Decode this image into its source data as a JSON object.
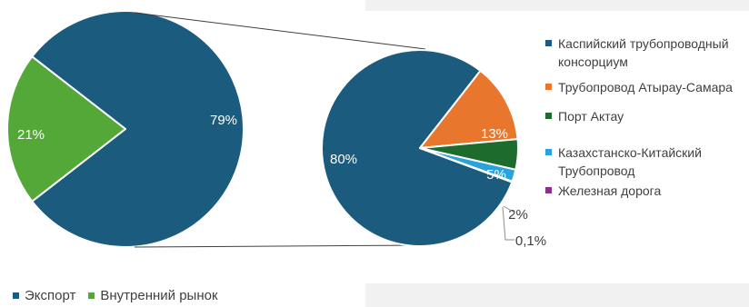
{
  "colors": {
    "export": "#1a5b7e",
    "domestic": "#54a838",
    "cpc": "#1a5b7e",
    "atyrau": "#e8762d",
    "aktau": "#1e6b2e",
    "kz_china": "#29a3dd",
    "rail": "#8b2f8f",
    "connector": "#404040"
  },
  "chart_data": [
    {
      "type": "pie",
      "categories": [
        "Экспорт",
        "Внутренний рынок"
      ],
      "values": [
        79,
        21
      ],
      "data_labels": [
        "79%",
        "21%"
      ],
      "legend_position": "bottom"
    },
    {
      "type": "pie",
      "categories": [
        "Каспийский трубопроводный консорциум",
        "Трубопровод Атырау-Самара",
        "Порт Актау",
        "Казахстанско-Китайский Трубопровод",
        "Железная дорога"
      ],
      "values": [
        80,
        13,
        5,
        2,
        0.1
      ],
      "data_labels": [
        "80%",
        "13%",
        "5%",
        "2%",
        "0,1%"
      ],
      "legend_position": "right"
    }
  ],
  "legend_right": [
    {
      "line1": "Каспийский трубопроводный",
      "line2": "консорциум"
    },
    {
      "line1": "Трубопровод Атырау-Самара",
      "line2": ""
    },
    {
      "line1": "Порт Актау",
      "line2": ""
    },
    {
      "line1": "Казахстанско-Китайский",
      "line2": "Трубопровод"
    },
    {
      "line1": "Железная дорога",
      "line2": ""
    }
  ],
  "legend_bottom": [
    "Экспорт",
    "Внутренний рынок"
  ]
}
